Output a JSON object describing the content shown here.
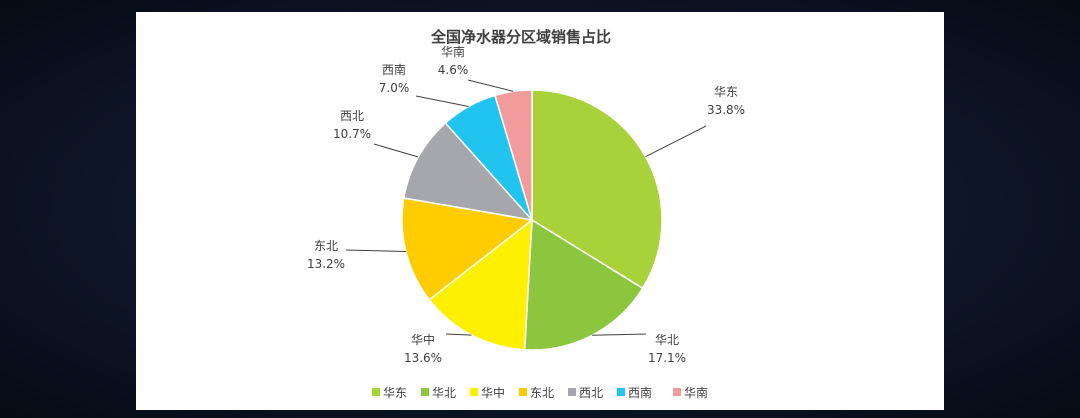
{
  "chart_data": {
    "type": "pie",
    "title": "全国净水器分区域销售占比",
    "series": [
      {
        "name": "华东",
        "value": 33.8,
        "label": "33.8%",
        "color": "#a9d13a"
      },
      {
        "name": "华北",
        "value": 17.1,
        "label": "17.1%",
        "color": "#8cc63f"
      },
      {
        "name": "华中",
        "value": 13.6,
        "label": "13.6%",
        "color": "#ffef00"
      },
      {
        "name": "东北",
        "value": 13.2,
        "label": "13.2%",
        "color": "#ffcc00"
      },
      {
        "name": "西北",
        "value": 10.7,
        "label": "10.7%",
        "color": "#a6a6ad"
      },
      {
        "name": "西南",
        "value": 7.0,
        "label": "7.0%",
        "color": "#21c4ef"
      },
      {
        "name": "华南",
        "value": 4.6,
        "label": "4.6%",
        "color": "#f29b9d"
      }
    ],
    "legend": "bottom"
  }
}
